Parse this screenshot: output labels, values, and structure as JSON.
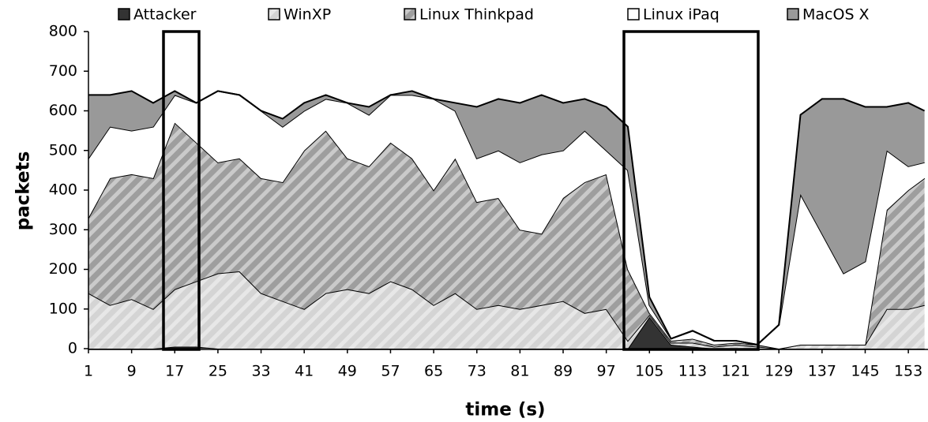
{
  "chart_data": {
    "type": "stacked-area",
    "x_label": "time (s)",
    "y_label": "packets",
    "x": [
      1,
      5,
      9,
      13,
      17,
      21,
      25,
      29,
      33,
      37,
      41,
      45,
      49,
      53,
      57,
      61,
      65,
      69,
      73,
      77,
      81,
      85,
      89,
      93,
      97,
      101,
      105,
      109,
      113,
      117,
      121,
      125,
      129,
      133,
      137,
      141,
      145,
      149,
      153,
      156
    ],
    "xlim": [
      1,
      156
    ],
    "xticks": [
      1,
      9,
      17,
      25,
      33,
      41,
      49,
      57,
      65,
      73,
      81,
      89,
      97,
      105,
      113,
      121,
      129,
      137,
      145,
      153
    ],
    "ylim": [
      0,
      800
    ],
    "yticks": [
      0,
      100,
      200,
      300,
      400,
      500,
      600,
      700,
      800
    ],
    "series": [
      {
        "name": "Attacker",
        "color": "#333333",
        "hatched": false,
        "values": [
          0,
          0,
          0,
          0,
          5,
          5,
          0,
          0,
          0,
          0,
          0,
          0,
          0,
          0,
          0,
          0,
          0,
          0,
          0,
          0,
          0,
          0,
          0,
          0,
          0,
          0,
          80,
          10,
          5,
          0,
          0,
          0,
          0,
          0,
          0,
          0,
          0,
          0,
          0,
          0
        ]
      },
      {
        "name": "WinXP",
        "color": "#d4d4d4",
        "hatched": true,
        "values": [
          140,
          110,
          125,
          100,
          145,
          165,
          190,
          195,
          140,
          120,
          100,
          140,
          150,
          140,
          170,
          150,
          110,
          140,
          100,
          110,
          100,
          110,
          120,
          90,
          100,
          20,
          5,
          5,
          10,
          5,
          10,
          5,
          0,
          10,
          10,
          10,
          10,
          100,
          100,
          110
        ]
      },
      {
        "name": "Linux Thinkpad",
        "color": "#9e9e9e",
        "hatched": true,
        "values": [
          190,
          320,
          315,
          330,
          420,
          350,
          280,
          285,
          290,
          300,
          400,
          410,
          330,
          320,
          350,
          330,
          290,
          340,
          270,
          270,
          200,
          180,
          260,
          330,
          340,
          180,
          5,
          5,
          10,
          5,
          5,
          5,
          0,
          0,
          0,
          0,
          0,
          250,
          300,
          320
        ]
      },
      {
        "name": "Linux iPaq",
        "color": "#ffffff",
        "hatched": false,
        "values": [
          150,
          130,
          110,
          130,
          70,
          100,
          180,
          160,
          170,
          140,
          100,
          80,
          140,
          130,
          120,
          160,
          230,
          120,
          110,
          120,
          170,
          200,
          120,
          130,
          60,
          250,
          20,
          5,
          20,
          10,
          5,
          0,
          60,
          380,
          280,
          180,
          210,
          150,
          60,
          40
        ]
      },
      {
        "name": "MacOS X",
        "color": "#999999",
        "hatched": false,
        "values": [
          160,
          80,
          100,
          60,
          10,
          0,
          0,
          0,
          0,
          20,
          20,
          10,
          0,
          20,
          0,
          10,
          0,
          20,
          130,
          130,
          150,
          150,
          120,
          80,
          110,
          110,
          20,
          0,
          0,
          0,
          0,
          0,
          0,
          200,
          340,
          440,
          390,
          110,
          160,
          130
        ]
      }
    ]
  }
}
